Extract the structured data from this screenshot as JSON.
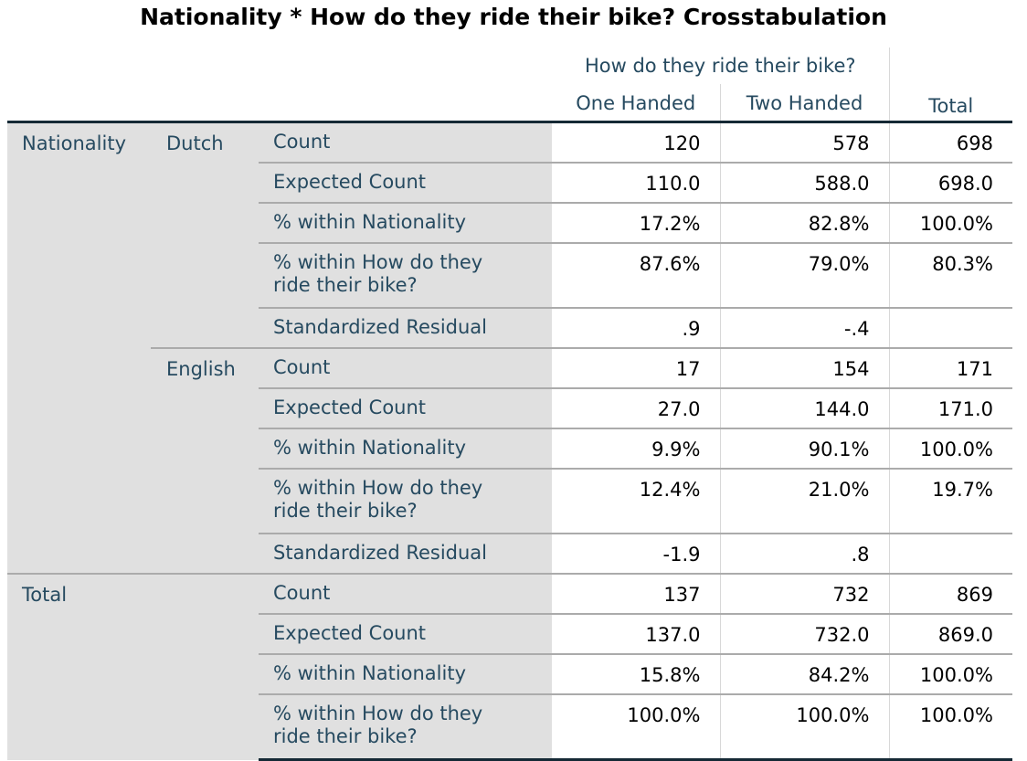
{
  "title": "Nationality * How do they ride their bike? Crosstabulation",
  "header": {
    "spanner": "How do they ride their bike?",
    "columns": [
      "One Handed",
      "Two Handed"
    ],
    "total": "Total"
  },
  "row_variable": "Nationality",
  "groups": [
    {
      "label": "Dutch",
      "rows": [
        {
          "stat": "Count",
          "values": [
            "120",
            "578",
            "698"
          ]
        },
        {
          "stat": "Expected Count",
          "values": [
            "110.0",
            "588.0",
            "698.0"
          ]
        },
        {
          "stat": "% within Nationality",
          "values": [
            "17.2%",
            "82.8%",
            "100.0%"
          ]
        },
        {
          "stat": "% within How do they ride their bike?",
          "values": [
            "87.6%",
            "79.0%",
            "80.3%"
          ]
        },
        {
          "stat": "Standardized Residual",
          "values": [
            ".9",
            "-.4",
            ""
          ]
        }
      ]
    },
    {
      "label": "English",
      "rows": [
        {
          "stat": "Count",
          "values": [
            "17",
            "154",
            "171"
          ]
        },
        {
          "stat": "Expected Count",
          "values": [
            "27.0",
            "144.0",
            "171.0"
          ]
        },
        {
          "stat": "% within Nationality",
          "values": [
            "9.9%",
            "90.1%",
            "100.0%"
          ]
        },
        {
          "stat": "% within How do they ride their bike?",
          "values": [
            "12.4%",
            "21.0%",
            "19.7%"
          ]
        },
        {
          "stat": "Standardized Residual",
          "values": [
            "-1.9",
            ".8",
            ""
          ]
        }
      ]
    }
  ],
  "total": {
    "label": "Total",
    "rows": [
      {
        "stat": "Count",
        "values": [
          "137",
          "732",
          "869"
        ]
      },
      {
        "stat": "Expected Count",
        "values": [
          "137.0",
          "732.0",
          "869.0"
        ]
      },
      {
        "stat": "% within Nationality",
        "values": [
          "15.8%",
          "84.2%",
          "100.0%"
        ]
      },
      {
        "stat": "% within How do they ride their bike?",
        "values": [
          "100.0%",
          "100.0%",
          "100.0%"
        ]
      }
    ]
  }
}
